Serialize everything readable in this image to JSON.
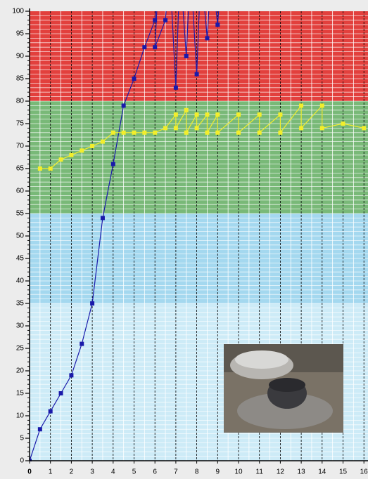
{
  "chart_data": {
    "type": "line",
    "xlim": [
      0,
      16
    ],
    "ylim": [
      0,
      100
    ],
    "xticks": [
      0,
      1,
      2,
      3,
      4,
      5,
      6,
      7,
      8,
      9,
      10,
      11,
      12,
      13,
      14,
      15,
      16
    ],
    "yticks": [
      0,
      5,
      10,
      15,
      20,
      25,
      30,
      35,
      40,
      45,
      50,
      55,
      60,
      65,
      70,
      75,
      80,
      85,
      90,
      95,
      100
    ],
    "grid": true,
    "bands": [
      {
        "from": 80,
        "to": 100,
        "color": "#e2403d"
      },
      {
        "from": 55,
        "to": 80,
        "color": "#79b978"
      },
      {
        "from": 35,
        "to": 55,
        "color": "#a4d8ef"
      },
      {
        "from": 0,
        "to": 35,
        "color": "#cdebf7"
      }
    ],
    "series": [
      {
        "color": "#1a1aaa",
        "x": [
          0,
          0.5,
          1,
          1.5,
          2,
          2.5,
          3,
          3.5,
          4,
          4.5,
          5,
          5.5,
          6,
          6.2,
          6,
          6.5,
          6.7,
          7,
          7.2,
          7.5,
          7.7,
          8,
          8.2,
          8.5,
          8.7,
          9,
          9.2,
          10
        ],
        "values": [
          0,
          7,
          11,
          15,
          19,
          26,
          35,
          54,
          66,
          79,
          85,
          92,
          98,
          110,
          92,
          98,
          110,
          83,
          110,
          90,
          110,
          86,
          110,
          94,
          110,
          97,
          110,
          100.5
        ]
      },
      {
        "color": "#f2ee2c",
        "x": [
          0.5,
          1,
          1.5,
          2,
          2.5,
          3,
          3.5,
          4,
          4.5,
          5,
          5.5,
          6,
          6.5,
          7,
          7,
          7.5,
          7.5,
          8,
          8,
          8.5,
          8.5,
          9,
          9,
          10,
          10,
          11,
          11,
          12,
          12,
          13,
          13,
          14,
          14,
          15,
          16
        ],
        "values": [
          65,
          65,
          67,
          68,
          69,
          70,
          71,
          73,
          73,
          73,
          73,
          73,
          74,
          77,
          74,
          78,
          73,
          77,
          74,
          77,
          73,
          77,
          73,
          77,
          73,
          77,
          73,
          77,
          73,
          79,
          74,
          79,
          74,
          75,
          74
        ]
      }
    ]
  }
}
